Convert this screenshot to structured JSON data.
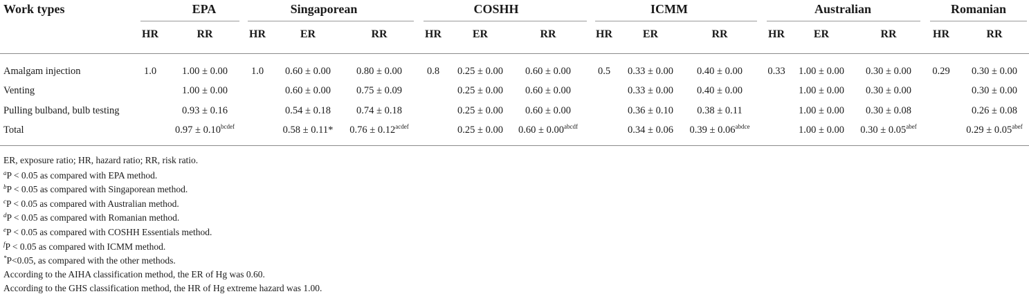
{
  "table": {
    "stub_header": "Work types",
    "groups": [
      {
        "name": "EPA",
        "cols": [
          "HR",
          "RR"
        ]
      },
      {
        "name": "Singaporean",
        "cols": [
          "HR",
          "ER",
          "RR"
        ]
      },
      {
        "name": "COSHH",
        "cols": [
          "HR",
          "ER",
          "RR"
        ]
      },
      {
        "name": "ICMM",
        "cols": [
          "HR",
          "ER",
          "RR"
        ]
      },
      {
        "name": "Australian",
        "cols": [
          "HR",
          "ER",
          "RR"
        ]
      },
      {
        "name": "Romanian",
        "cols": [
          "HR",
          "RR"
        ]
      }
    ],
    "rows": [
      {
        "label": "Amalgam injection",
        "cells": [
          {
            "v": "1.0"
          },
          {
            "v": "1.00 ± 0.00"
          },
          {
            "v": "1.0"
          },
          {
            "v": "0.60 ± 0.00"
          },
          {
            "v": "0.80 ± 0.00"
          },
          {
            "v": "0.8"
          },
          {
            "v": "0.25 ± 0.00"
          },
          {
            "v": "0.60 ± 0.00"
          },
          {
            "v": "0.5"
          },
          {
            "v": "0.33 ± 0.00"
          },
          {
            "v": "0.40 ± 0.00"
          },
          {
            "v": "0.33"
          },
          {
            "v": "1.00 ± 0.00"
          },
          {
            "v": "0.30 ± 0.00"
          },
          {
            "v": "0.29"
          },
          {
            "v": "0.30 ± 0.00"
          }
        ]
      },
      {
        "label": "Venting",
        "cells": [
          {
            "v": ""
          },
          {
            "v": "1.00 ± 0.00"
          },
          {
            "v": ""
          },
          {
            "v": "0.60 ± 0.00"
          },
          {
            "v": "0.75 ± 0.09"
          },
          {
            "v": ""
          },
          {
            "v": "0.25 ± 0.00"
          },
          {
            "v": "0.60 ± 0.00"
          },
          {
            "v": ""
          },
          {
            "v": "0.33 ± 0.00"
          },
          {
            "v": "0.40 ± 0.00"
          },
          {
            "v": ""
          },
          {
            "v": "1.00 ± 0.00"
          },
          {
            "v": "0.30 ± 0.00"
          },
          {
            "v": ""
          },
          {
            "v": "0.30 ± 0.00"
          }
        ]
      },
      {
        "label": "Pulling bulband, bulb testing",
        "cells": [
          {
            "v": ""
          },
          {
            "v": "0.93 ± 0.16"
          },
          {
            "v": ""
          },
          {
            "v": "0.54 ± 0.18"
          },
          {
            "v": "0.74 ± 0.18"
          },
          {
            "v": ""
          },
          {
            "v": "0.25 ± 0.00"
          },
          {
            "v": "0.60 ± 0.00"
          },
          {
            "v": ""
          },
          {
            "v": "0.36 ± 0.10"
          },
          {
            "v": "0.38 ± 0.11"
          },
          {
            "v": ""
          },
          {
            "v": "1.00 ± 0.00"
          },
          {
            "v": "0.30 ± 0.08"
          },
          {
            "v": ""
          },
          {
            "v": "0.26 ± 0.08"
          }
        ]
      },
      {
        "label": "Total",
        "cells": [
          {
            "v": ""
          },
          {
            "v": "0.97 ± 0.10",
            "sup": "bcdef"
          },
          {
            "v": ""
          },
          {
            "v": "0.58 ± 0.11*"
          },
          {
            "v": "0.76 ± 0.12",
            "sup": "acdef"
          },
          {
            "v": ""
          },
          {
            "v": "0.25 ± 0.00"
          },
          {
            "v": "0.60 ± 0.00",
            "sup": "abcdf"
          },
          {
            "v": ""
          },
          {
            "v": "0.34 ± 0.06"
          },
          {
            "v": "0.39 ± 0.06",
            "sup": "abdce"
          },
          {
            "v": ""
          },
          {
            "v": "1.00 ± 0.00"
          },
          {
            "v": "0.30 ± 0.05",
            "sup": "abef"
          },
          {
            "v": ""
          },
          {
            "v": "0.29 ± 0.05",
            "sup": "abef"
          }
        ]
      }
    ]
  },
  "footnotes": [
    {
      "mark": "",
      "text": "ER, exposure ratio; HR, hazard ratio; RR, risk ratio."
    },
    {
      "mark": "a",
      "text": "P < 0.05 as compared with EPA method."
    },
    {
      "mark": "b",
      "text": "P < 0.05 as compared with Singaporean method."
    },
    {
      "mark": "c",
      "text": "P < 0.05 as compared with Australian method."
    },
    {
      "mark": "d",
      "text": "P < 0.05 as compared with Romanian method."
    },
    {
      "mark": "e",
      "text": "P < 0.05 as compared with COSHH Essentials method."
    },
    {
      "mark": "f",
      "text": "P < 0.05 as compared with ICMM method."
    },
    {
      "mark": "*",
      "text": "P<0.05, as compared with the other methods."
    },
    {
      "mark": "",
      "text": "According to the AIHA classification method, the ER of Hg was 0.60."
    },
    {
      "mark": "",
      "text": "According to the GHS classification method, the HR of Hg extreme hazard was 1.00."
    }
  ]
}
